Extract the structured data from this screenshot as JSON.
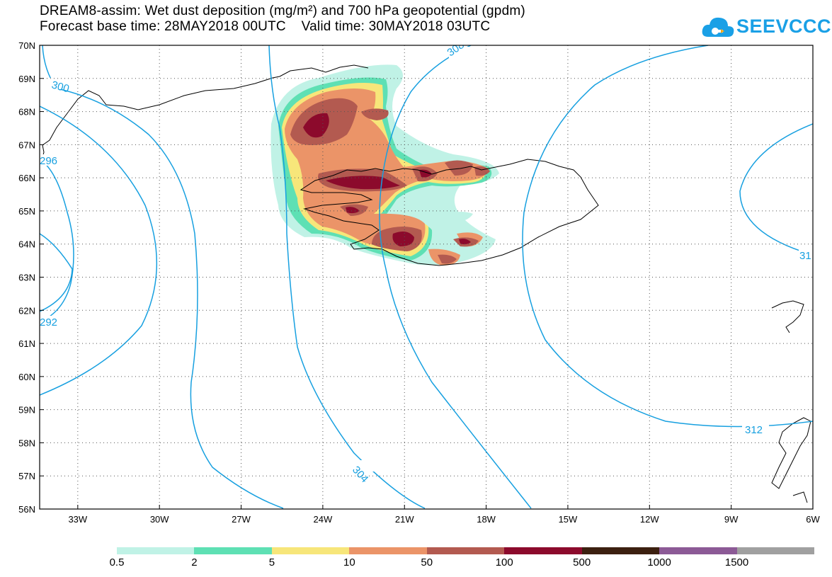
{
  "header": {
    "title_line1": "DREAM8-assim: Wet dust deposition (mg/m²) and 700 hPa geopotential (gpdm)",
    "title_line2": "Forecast base time: 28MAY2018 00UTC    Valid time: 30MAY2018 03UTC"
  },
  "logo": {
    "text": "SEEVCCC",
    "icon": "cloud-icon",
    "color": "#1aa0e6"
  },
  "map": {
    "lat_labels": [
      "70N",
      "69N",
      "68N",
      "67N",
      "66N",
      "65N",
      "64N",
      "63N",
      "62N",
      "61N",
      "60N",
      "59N",
      "58N",
      "57N",
      "56N"
    ],
    "lon_labels": [
      "33W",
      "30W",
      "27W",
      "24W",
      "21W",
      "18W",
      "15W",
      "12W",
      "9W",
      "6W"
    ],
    "lat_range": [
      56,
      70
    ],
    "lon_range": [
      -34.4,
      -6
    ],
    "contour_color": "#17a0e0",
    "contour_labels": [
      "300",
      "308",
      "296",
      "292",
      "304",
      "312",
      "31"
    ]
  },
  "colorbar": {
    "colors": [
      "#c0f2e6",
      "#5ee0b4",
      "#f7e67a",
      "#eb9468",
      "#b35a50",
      "#8c0a2c",
      "#3c2010",
      "#8c5a96",
      "#a0a0a0"
    ],
    "labels": [
      "0.5",
      "2",
      "5",
      "10",
      "50",
      "100",
      "500",
      "1000",
      "1500"
    ]
  }
}
